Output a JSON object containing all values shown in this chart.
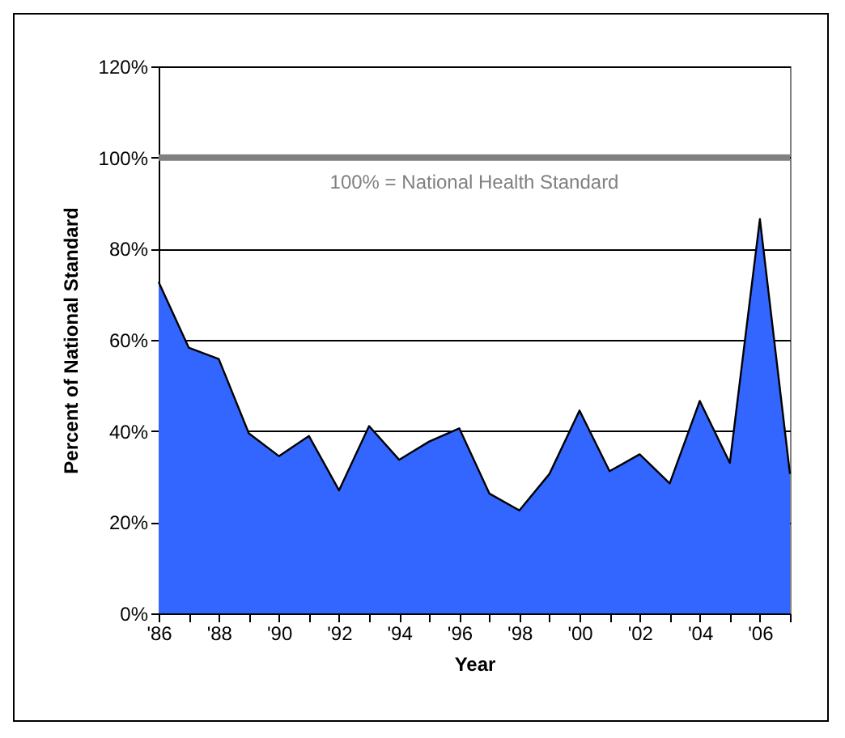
{
  "chart_data": {
    "type": "area",
    "xlabel": "Year",
    "ylabel": "Percent of National Standard",
    "x": [
      1986,
      1987,
      1988,
      1989,
      1990,
      1991,
      1992,
      1993,
      1994,
      1995,
      1996,
      1997,
      1998,
      1999,
      2000,
      2001,
      2002,
      2003,
      2004,
      2005,
      2006,
      2007
    ],
    "series": [
      {
        "color": "#3366ff",
        "values": [
          72.7,
          58.3,
          55.8,
          39.5,
          34.5,
          38.9,
          27.0,
          41.1,
          33.7,
          37.7,
          40.6,
          26.3,
          22.6,
          30.6,
          44.5,
          31.2,
          34.9,
          28.5,
          46.6,
          33.0,
          86.5,
          30.6
        ]
      }
    ],
    "xlim": [
      1986,
      2007
    ],
    "xticks": [
      {
        "value": 1986,
        "label": "'86"
      },
      {
        "value": 1987,
        "label": null
      },
      {
        "value": 1988,
        "label": "'88"
      },
      {
        "value": 1989,
        "label": null
      },
      {
        "value": 1990,
        "label": "'90"
      },
      {
        "value": 1991,
        "label": null
      },
      {
        "value": 1992,
        "label": "'92"
      },
      {
        "value": 1993,
        "label": null
      },
      {
        "value": 1994,
        "label": "'94"
      },
      {
        "value": 1995,
        "label": null
      },
      {
        "value": 1996,
        "label": "'96"
      },
      {
        "value": 1997,
        "label": null
      },
      {
        "value": 1998,
        "label": "'98"
      },
      {
        "value": 1999,
        "label": null
      },
      {
        "value": 2000,
        "label": "'00"
      },
      {
        "value": 2001,
        "label": null
      },
      {
        "value": 2002,
        "label": "'02"
      },
      {
        "value": 2003,
        "label": null
      },
      {
        "value": 2004,
        "label": "'04"
      },
      {
        "value": 2005,
        "label": null
      },
      {
        "value": 2006,
        "label": "'06"
      },
      {
        "value": 2007,
        "label": null
      }
    ],
    "ylim": [
      0,
      120
    ],
    "yticks": [
      {
        "value": 0,
        "label": "0%"
      },
      {
        "value": 20,
        "label": "20%"
      },
      {
        "value": 40,
        "label": "40%"
      },
      {
        "value": 60,
        "label": "60%"
      },
      {
        "value": 80,
        "label": "80%"
      },
      {
        "value": 100,
        "label": "100%"
      },
      {
        "value": 120,
        "label": "120%"
      }
    ],
    "grid": "y",
    "ref_lines": [
      {
        "axis": "y",
        "value": 100,
        "label": "100% = National Health Standard",
        "color": "#808080"
      }
    ]
  }
}
